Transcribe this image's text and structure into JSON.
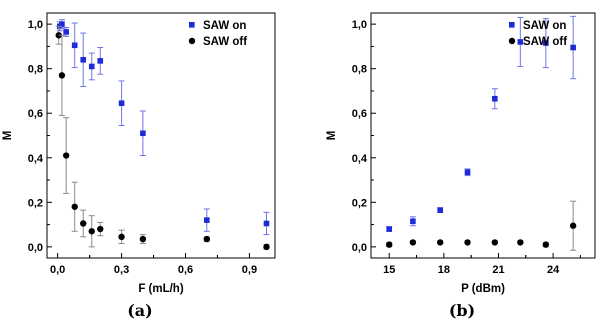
{
  "colors": {
    "on": "#1f2bd6",
    "off": "#000000",
    "on_err": "#6e76e6",
    "off_err": "#8a8a8a"
  },
  "chart_data": [
    {
      "type": "scatter",
      "panel_label": "(a)",
      "xlabel": "F (mL/h)",
      "ylabel": "M",
      "xlim": [
        -0.05,
        1.02
      ],
      "ylim": [
        -0.05,
        1.05
      ],
      "xticks": [
        0.0,
        0.3,
        0.6,
        0.9
      ],
      "xtick_labels": [
        "0,0",
        "0,3",
        "0,6",
        "0,9"
      ],
      "yticks": [
        0.0,
        0.2,
        0.4,
        0.6,
        0.8,
        1.0
      ],
      "ytick_labels": [
        "0,0",
        "0,2",
        "0,4",
        "0,6",
        "0,8",
        "1,0"
      ],
      "legend_position": "top-right",
      "series": [
        {
          "name": "SAW on",
          "marker": "square",
          "points": [
            {
              "x": 0.01,
              "y": 0.99,
              "err": 0.02
            },
            {
              "x": 0.02,
              "y": 1.0,
              "err": 0.02
            },
            {
              "x": 0.04,
              "y": 0.965,
              "err": 0.02
            },
            {
              "x": 0.08,
              "y": 0.905,
              "err": 0.1
            },
            {
              "x": 0.12,
              "y": 0.84,
              "err": 0.12
            },
            {
              "x": 0.16,
              "y": 0.81,
              "err": 0.06
            },
            {
              "x": 0.2,
              "y": 0.835,
              "err": 0.06
            },
            {
              "x": 0.3,
              "y": 0.645,
              "err": 0.1
            },
            {
              "x": 0.4,
              "y": 0.51,
              "err": 0.1
            },
            {
              "x": 0.7,
              "y": 0.12,
              "err": 0.05
            },
            {
              "x": 0.98,
              "y": 0.105,
              "err": 0.05
            }
          ]
        },
        {
          "name": "SAW off",
          "marker": "circle",
          "points": [
            {
              "x": 0.005,
              "y": 0.95,
              "err": 0.04
            },
            {
              "x": 0.02,
              "y": 0.77,
              "err": 0.18
            },
            {
              "x": 0.04,
              "y": 0.41,
              "err": 0.17
            },
            {
              "x": 0.08,
              "y": 0.18,
              "err": 0.11
            },
            {
              "x": 0.12,
              "y": 0.105,
              "err": 0.06
            },
            {
              "x": 0.16,
              "y": 0.07,
              "err": 0.07
            },
            {
              "x": 0.2,
              "y": 0.08,
              "err": 0.03
            },
            {
              "x": 0.3,
              "y": 0.045,
              "err": 0.03
            },
            {
              "x": 0.4,
              "y": 0.035,
              "err": 0.02
            },
            {
              "x": 0.7,
              "y": 0.035,
              "err": 0.01
            },
            {
              "x": 0.98,
              "y": 0.0,
              "err": 0.01
            }
          ]
        }
      ]
    },
    {
      "type": "scatter",
      "panel_label": "(b)",
      "xlabel": "P (dBm)",
      "ylabel": "M",
      "xlim": [
        14.0,
        26.3
      ],
      "ylim": [
        -0.05,
        1.05
      ],
      "xticks": [
        15,
        18,
        21,
        24
      ],
      "xtick_labels": [
        "15",
        "18",
        "21",
        "24"
      ],
      "yticks": [
        0.0,
        0.2,
        0.4,
        0.6,
        0.8,
        1.0
      ],
      "ytick_labels": [
        "0,0",
        "0,2",
        "0,4",
        "0,6",
        "0,8",
        "1,0"
      ],
      "legend_position": "top-right",
      "series": [
        {
          "name": "SAW on",
          "marker": "square",
          "points": [
            {
              "x": 15.0,
              "y": 0.08,
              "err": 0.01
            },
            {
              "x": 16.3,
              "y": 0.115,
              "err": 0.02
            },
            {
              "x": 17.8,
              "y": 0.165,
              "err": 0.01
            },
            {
              "x": 19.3,
              "y": 0.335,
              "err": 0.015
            },
            {
              "x": 20.8,
              "y": 0.665,
              "err": 0.045
            },
            {
              "x": 22.2,
              "y": 0.92,
              "err": 0.11
            },
            {
              "x": 23.6,
              "y": 0.915,
              "err": 0.11
            },
            {
              "x": 25.1,
              "y": 0.895,
              "err": 0.14
            }
          ]
        },
        {
          "name": "SAW off",
          "marker": "circle",
          "points": [
            {
              "x": 15.0,
              "y": 0.01,
              "err": 0.01
            },
            {
              "x": 16.3,
              "y": 0.02,
              "err": 0.005
            },
            {
              "x": 17.8,
              "y": 0.02,
              "err": 0.005
            },
            {
              "x": 19.3,
              "y": 0.02,
              "err": 0.005
            },
            {
              "x": 20.8,
              "y": 0.02,
              "err": 0.005
            },
            {
              "x": 22.2,
              "y": 0.02,
              "err": 0.005
            },
            {
              "x": 23.6,
              "y": 0.01,
              "err": 0.01
            },
            {
              "x": 25.1,
              "y": 0.095,
              "err": 0.11
            }
          ]
        }
      ]
    }
  ]
}
